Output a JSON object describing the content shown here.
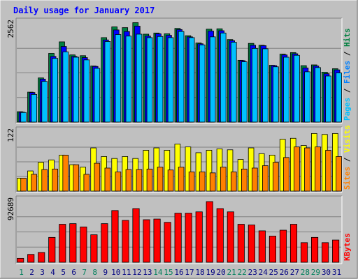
{
  "chart_data": {
    "type": "bar",
    "title": "Daily usage for January 2017",
    "categories": [
      "1",
      "2",
      "3",
      "4",
      "5",
      "6",
      "7",
      "8",
      "9",
      "10",
      "11",
      "12",
      "13",
      "14",
      "15",
      "16",
      "17",
      "18",
      "19",
      "20",
      "21",
      "22",
      "23",
      "24",
      "25",
      "26",
      "27",
      "28",
      "29",
      "30",
      "31"
    ],
    "weekend_days": [
      1,
      7,
      8,
      14,
      15,
      21,
      22,
      28,
      29
    ],
    "panels": [
      {
        "id": "hits-files-pages",
        "ymax_label": "2562",
        "ymax": 2562,
        "ylabel_parts": [
          {
            "text": "Pages",
            "color": "#00c0ff"
          },
          {
            "text": " / ",
            "color": "#000000"
          },
          {
            "text": "Files",
            "color": "#0080ff"
          },
          {
            "text": " / ",
            "color": "#000000"
          },
          {
            "text": "Hits",
            "color": "#008040"
          }
        ],
        "series": [
          {
            "name": "Hits",
            "color": "#008040",
            "values": [
              270,
              780,
              1150,
              1790,
              2090,
              1750,
              1730,
              1460,
              2200,
              2480,
              2460,
              2590,
              2290,
              2320,
              2300,
              2440,
              2250,
              2060,
              2420,
              2430,
              2150,
              1610,
              2050,
              2000,
              1480,
              1770,
              1810,
              1470,
              1490,
              1300,
              1390
            ]
          },
          {
            "name": "Files",
            "color": "#0000ff",
            "values": [
              260,
              770,
              1120,
              1710,
              1970,
              1710,
              1680,
              1450,
              2140,
              2400,
              2360,
              2500,
              2240,
              2300,
              2260,
              2410,
              2220,
              2040,
              2370,
              2380,
              2120,
              1600,
              2000,
              1990,
              1470,
              1750,
              1780,
              1410,
              1460,
              1260,
              1360
            ]
          },
          {
            "name": "Pages",
            "color": "#00c0ff",
            "values": [
              250,
              720,
              1060,
              1660,
              1830,
              1690,
              1620,
              1400,
              2100,
              2280,
              2240,
              2290,
              2200,
              2230,
              2200,
              2360,
              2200,
              2010,
              2220,
              2320,
              2080,
              1570,
              1920,
              1910,
              1440,
              1690,
              1740,
              1310,
              1420,
              1200,
              1280
            ]
          }
        ]
      },
      {
        "id": "visits-sites",
        "ymax_label": "122",
        "ymax": 122,
        "ylabel_parts": [
          {
            "text": "Sites",
            "color": "#ff8000"
          },
          {
            "text": " / ",
            "color": "#000000"
          },
          {
            "text": "Visits",
            "color": "#ffff00"
          }
        ],
        "series": [
          {
            "name": "Visits",
            "color": "#ffff00",
            "values": [
              27,
              42,
              60,
              65,
              75,
              55,
              50,
              90,
              72,
              68,
              72,
              68,
              85,
              90,
              85,
              98,
              92,
              80,
              85,
              88,
              86,
              66,
              90,
              78,
              75,
              108,
              110,
              95,
              120,
              118,
              120
            ]
          },
          {
            "name": "Sites",
            "color": "#ff8000",
            "values": [
              27,
              35,
              45,
              46,
              75,
              55,
              35,
              58,
              48,
              40,
              45,
              45,
              46,
              50,
              44,
              50,
              40,
              40,
              38,
              50,
              40,
              46,
              48,
              53,
              60,
              70,
              92,
              90,
              92,
              85,
              72
            ]
          }
        ]
      },
      {
        "id": "kbytes",
        "ymax_label": "92689",
        "ymax": 92689,
        "ylabel_parts": [
          {
            "text": "KBytes",
            "color": "#ff0000"
          }
        ],
        "series": [
          {
            "name": "KBytes",
            "color": "#ff0000",
            "values": [
              6000,
              12000,
              15000,
              38000,
              58000,
              59000,
              54000,
              42000,
              59000,
              79000,
              64000,
              82000,
              65000,
              66000,
              61000,
              75000,
              75000,
              77000,
              92689,
              82000,
              77000,
              58000,
              57000,
              48000,
              40000,
              49000,
              58000,
              30000,
              38000,
              30000,
              34000
            ]
          }
        ]
      }
    ],
    "colors": {
      "background": "#c0c0c0",
      "plot_background": "#c0c0c0",
      "title_color": "#0000ff",
      "weekday_label": "#000080",
      "weekend_label": "#00805c"
    },
    "grid": true,
    "legend": "right-vertical"
  }
}
